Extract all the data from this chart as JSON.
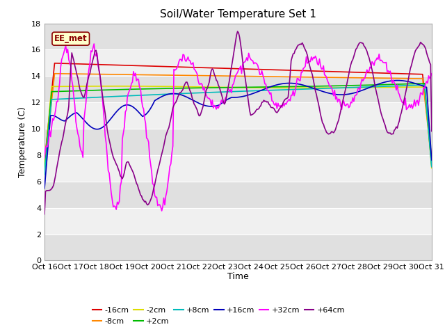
{
  "title": "Soil/Water Temperature Set 1",
  "xlabel": "Time",
  "ylabel": "Temperature (C)",
  "ylim": [
    0,
    18
  ],
  "yticks": [
    0,
    2,
    4,
    6,
    8,
    10,
    12,
    14,
    16,
    18
  ],
  "x_labels": [
    "Oct 16",
    "Oct 17",
    "Oct 18",
    "Oct 19",
    "Oct 20",
    "Oct 21",
    "Oct 22",
    "Oct 23",
    "Oct 24",
    "Oct 25",
    "Oct 26",
    "Oct 27",
    "Oct 28",
    "Oct 29",
    "Oct 30",
    "Oct 31"
  ],
  "annotation_text": "EE_met",
  "fig_bg": "#ffffff",
  "plot_bg_light": "#f0f0f0",
  "plot_bg_dark": "#e0e0e0",
  "grid_color": "#ffffff",
  "series": {
    "-16cm": {
      "color": "#dd0000",
      "linewidth": 1.2
    },
    "-8cm": {
      "color": "#ff8800",
      "linewidth": 1.2
    },
    "-2cm": {
      "color": "#dddd00",
      "linewidth": 1.2
    },
    "+2cm": {
      "color": "#00bb00",
      "linewidth": 1.2
    },
    "+8cm": {
      "color": "#00bbbb",
      "linewidth": 1.2
    },
    "+16cm": {
      "color": "#0000bb",
      "linewidth": 1.2
    },
    "+32cm": {
      "color": "#ff00ff",
      "linewidth": 1.2
    },
    "+64cm": {
      "color": "#880088",
      "linewidth": 1.2
    }
  }
}
